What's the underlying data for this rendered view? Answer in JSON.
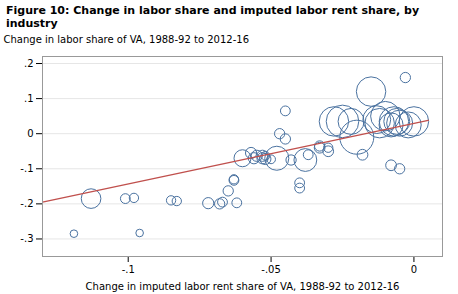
{
  "chart_data": {
    "type": "scatter",
    "title": "Figure 10: Change in labor share and imputed labor rent share, by industry",
    "xlabel": "Change in imputed labor rent share of VA, 1988-92 to 2012-16",
    "ylabel": "Change in labor share of VA, 1988-92 to 2012-16",
    "xlim": [
      -0.13,
      0.01
    ],
    "ylim": [
      -0.35,
      0.22
    ],
    "xticks": [
      {
        "value": -0.1,
        "label": "-.1"
      },
      {
        "value": -0.05,
        "label": "-.05"
      },
      0.0
    ],
    "yticks": [
      {
        "value": -0.3,
        "label": "-.3"
      },
      {
        "value": -0.2,
        "label": "-.2"
      },
      {
        "value": -0.1,
        "label": "-.1"
      },
      0.0,
      {
        "value": 0.1,
        "label": ".1"
      },
      {
        "value": 0.2,
        "label": ".2"
      }
    ],
    "grid": "y",
    "series": [
      {
        "type": "scatter",
        "color": "#4a72a0",
        "marker": "circle",
        "x": [
          -0.119,
          -0.113,
          -0.101,
          -0.098,
          -0.096,
          -0.085,
          -0.083,
          -0.072,
          -0.068,
          -0.067,
          -0.065,
          -0.063,
          -0.063,
          -0.062,
          -0.06,
          -0.057,
          -0.056,
          -0.055,
          -0.053,
          -0.053,
          -0.052,
          -0.052,
          -0.05,
          -0.048,
          -0.047,
          -0.045,
          -0.045,
          -0.043,
          -0.04,
          -0.04,
          -0.038,
          -0.037,
          -0.033,
          -0.033,
          -0.03,
          -0.03,
          -0.028,
          -0.025,
          -0.022,
          -0.02,
          -0.018,
          -0.015,
          -0.013,
          -0.012,
          -0.01,
          -0.008,
          -0.008,
          -0.007,
          -0.006,
          -0.005,
          -0.005,
          -0.003,
          -0.002,
          0.0
        ],
        "values": [
          -0.285,
          -0.185,
          -0.185,
          -0.183,
          -0.283,
          -0.19,
          -0.192,
          -0.198,
          -0.2,
          -0.195,
          -0.163,
          -0.133,
          -0.13,
          -0.197,
          -0.07,
          -0.055,
          -0.07,
          -0.063,
          -0.063,
          -0.07,
          -0.063,
          -0.072,
          -0.073,
          -0.07,
          0.0,
          -0.015,
          0.065,
          -0.075,
          -0.14,
          -0.155,
          -0.075,
          -0.06,
          -0.035,
          -0.04,
          -0.04,
          -0.05,
          0.035,
          0.035,
          0.035,
          -0.01,
          -0.06,
          0.12,
          0.04,
          0.03,
          0.05,
          0.025,
          -0.09,
          0.035,
          0.035,
          0.03,
          -0.1,
          0.16,
          0.025,
          0.035
        ],
        "sizes": [
          30,
          200,
          50,
          45,
          30,
          45,
          45,
          65,
          55,
          50,
          55,
          50,
          45,
          50,
          150,
          65,
          65,
          65,
          65,
          65,
          40,
          65,
          40,
          300,
          55,
          55,
          50,
          55,
          50,
          50,
          270,
          50,
          55,
          60,
          45,
          60,
          450,
          550,
          350,
          600,
          60,
          450,
          400,
          450,
          450,
          300,
          60,
          450,
          350,
          350,
          55,
          55,
          350,
          450
        ]
      },
      {
        "type": "line",
        "color": "#c0504d",
        "x": [
          -0.13,
          0.005
        ],
        "values": [
          -0.195,
          0.038
        ]
      }
    ]
  }
}
